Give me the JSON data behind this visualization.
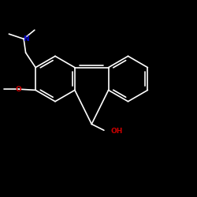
{
  "background_color": "#000000",
  "bond_color": "#ffffff",
  "N_color": "#0000cc",
  "O_color": "#cc0000",
  "label_N": "N",
  "label_O": "O",
  "label_OH": "OH",
  "fig_width": 2.5,
  "fig_height": 2.5,
  "dpi": 100,
  "xlim": [
    0,
    10
  ],
  "ylim": [
    0,
    10
  ]
}
